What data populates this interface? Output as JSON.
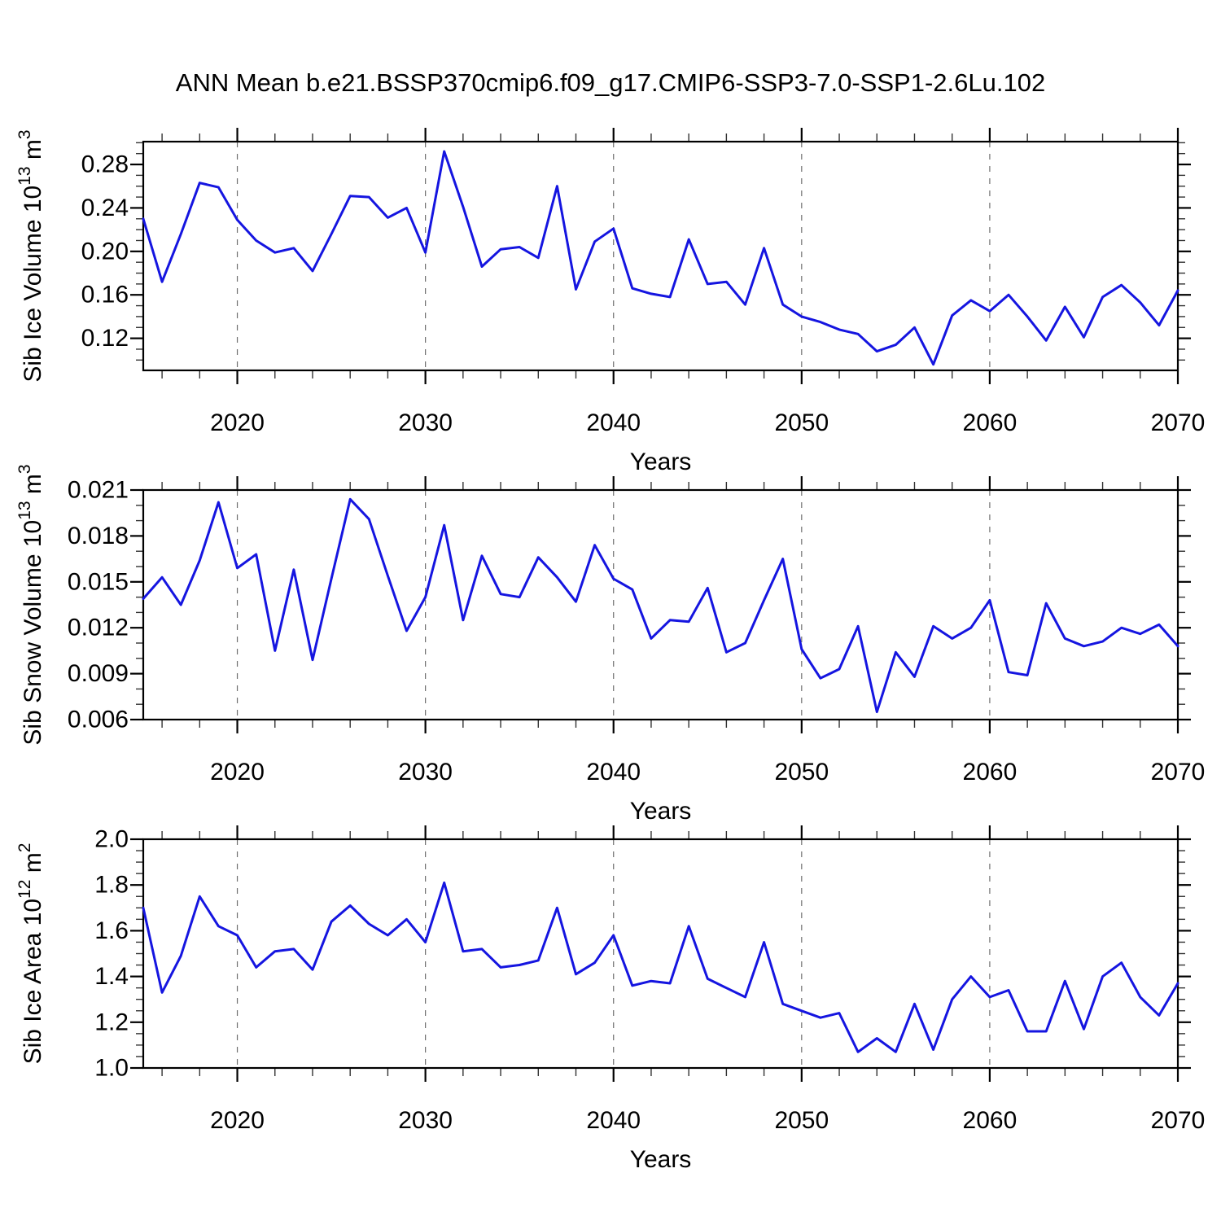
{
  "title": "ANN Mean b.e21.BSSP370cmip6.f09_g17.CMIP6-SSP3-7.0-SSP1-2.6Lu.102",
  "figure": {
    "background": "#ffffff",
    "line_color": "#1515e0",
    "axis_color": "#000000",
    "grid_color": "#6e6e6e"
  },
  "chart_data": [
    {
      "type": "line",
      "panel": "sib-ice-volume",
      "ylabel_plain": "Sib Ice Volume 10^13 m^3",
      "ylabel_parts": [
        {
          "t": "Sib Ice Volume 10"
        },
        {
          "t": "13",
          "sup": true
        },
        {
          "t": " m"
        },
        {
          "t": "3",
          "sup": true
        }
      ],
      "xlabel": "Years",
      "x_years": {
        "start": 2015,
        "end": 2070,
        "step": 1
      },
      "values": [
        0.23,
        0.172,
        0.216,
        0.263,
        0.259,
        0.229,
        0.21,
        0.199,
        0.203,
        0.182,
        0.216,
        0.251,
        0.25,
        0.231,
        0.24,
        0.199,
        0.292,
        0.241,
        0.186,
        0.202,
        0.204,
        0.194,
        0.26,
        0.165,
        0.209,
        0.221,
        0.166,
        0.161,
        0.158,
        0.211,
        0.17,
        0.172,
        0.151,
        0.203,
        0.151,
        0.14,
        0.135,
        0.128,
        0.124,
        0.108,
        0.114,
        0.13,
        0.096,
        0.141,
        0.155,
        0.145,
        0.16,
        0.14,
        0.118,
        0.149,
        0.121,
        0.158,
        0.169,
        0.153,
        0.132,
        0.164
      ],
      "xlim": [
        2015,
        2070
      ],
      "ylim": [
        0.0905,
        0.301
      ],
      "yticks": [
        0.12,
        0.16,
        0.2,
        0.24,
        0.28
      ],
      "ytick_labels": [
        "0.12",
        "0.16",
        "0.20",
        "0.24",
        "0.28"
      ],
      "minor_ytick_step": 0.01,
      "xticks": [
        2020,
        2030,
        2040,
        2050,
        2060,
        2070
      ],
      "xtick_labels": [
        "2020",
        "2030",
        "2040",
        "2050",
        "2060",
        "2070"
      ],
      "minor_xtick_step": 2,
      "grid_x": [
        2020,
        2030,
        2040,
        2050,
        2060
      ],
      "grid": "vertical-dashed",
      "legend": "none"
    },
    {
      "type": "line",
      "panel": "sib-snow-volume",
      "ylabel_plain": "Sib Snow Volume 10^13 m^3",
      "ylabel_parts": [
        {
          "t": "Sib Snow Volume 10"
        },
        {
          "t": "13",
          "sup": true
        },
        {
          "t": " m"
        },
        {
          "t": "3",
          "sup": true
        }
      ],
      "xlabel": "Years",
      "x_years": {
        "start": 2015,
        "end": 2070,
        "step": 1
      },
      "values": [
        0.0139,
        0.0153,
        0.0135,
        0.0164,
        0.0202,
        0.0159,
        0.0168,
        0.0105,
        0.0158,
        0.0099,
        0.0152,
        0.0204,
        0.0191,
        0.0154,
        0.0118,
        0.014,
        0.0187,
        0.0125,
        0.0167,
        0.0142,
        0.014,
        0.0166,
        0.0153,
        0.0137,
        0.0174,
        0.0152,
        0.0145,
        0.0113,
        0.0125,
        0.0124,
        0.0146,
        0.0104,
        0.011,
        0.0138,
        0.0165,
        0.0106,
        0.0087,
        0.0093,
        0.0121,
        0.0065,
        0.0104,
        0.0088,
        0.0121,
        0.0113,
        0.012,
        0.0138,
        0.0091,
        0.0089,
        0.0136,
        0.0113,
        0.0108,
        0.0111,
        0.012,
        0.0116,
        0.0122,
        0.0108
      ],
      "xlim": [
        2015,
        2070
      ],
      "ylim": [
        0.006,
        0.021
      ],
      "yticks": [
        0.006,
        0.009,
        0.012,
        0.015,
        0.018,
        0.021
      ],
      "ytick_labels": [
        "0.006",
        "0.009",
        "0.012",
        "0.015",
        "0.018",
        "0.021"
      ],
      "minor_ytick_step": 0.001,
      "xticks": [
        2020,
        2030,
        2040,
        2050,
        2060,
        2070
      ],
      "xtick_labels": [
        "2020",
        "2030",
        "2040",
        "2050",
        "2060",
        "2070"
      ],
      "minor_xtick_step": 2,
      "grid_x": [
        2020,
        2030,
        2040,
        2050,
        2060
      ],
      "grid": "vertical-dashed",
      "legend": "none"
    },
    {
      "type": "line",
      "panel": "sib-ice-area",
      "ylabel_plain": "Sib Ice Area 10^12 m^2",
      "ylabel_parts": [
        {
          "t": "Sib Ice Area 10"
        },
        {
          "t": "12",
          "sup": true
        },
        {
          "t": " m"
        },
        {
          "t": "2",
          "sup": true
        }
      ],
      "xlabel": "Years",
      "x_years": {
        "start": 2015,
        "end": 2070,
        "step": 1
      },
      "values": [
        1.7,
        1.33,
        1.49,
        1.75,
        1.62,
        1.58,
        1.44,
        1.51,
        1.52,
        1.43,
        1.64,
        1.71,
        1.63,
        1.58,
        1.65,
        1.55,
        1.81,
        1.51,
        1.52,
        1.44,
        1.45,
        1.47,
        1.7,
        1.41,
        1.46,
        1.58,
        1.36,
        1.38,
        1.37,
        1.62,
        1.39,
        1.35,
        1.31,
        1.55,
        1.28,
        1.25,
        1.22,
        1.24,
        1.07,
        1.13,
        1.07,
        1.28,
        1.08,
        1.3,
        1.4,
        1.31,
        1.34,
        1.16,
        1.16,
        1.38,
        1.17,
        1.4,
        1.46,
        1.31,
        1.23,
        1.37
      ],
      "xlim": [
        2015,
        2070
      ],
      "ylim": [
        1.0,
        2.0
      ],
      "yticks": [
        1.0,
        1.2,
        1.4,
        1.6,
        1.8,
        2.0
      ],
      "ytick_labels": [
        "1.0",
        "1.2",
        "1.4",
        "1.6",
        "1.8",
        "2.0"
      ],
      "minor_ytick_step": 0.05,
      "xticks": [
        2020,
        2030,
        2040,
        2050,
        2060,
        2070
      ],
      "xtick_labels": [
        "2020",
        "2030",
        "2040",
        "2050",
        "2060",
        "2070"
      ],
      "minor_xtick_step": 2,
      "grid_x": [
        2020,
        2030,
        2040,
        2050,
        2060
      ],
      "grid": "vertical-dashed",
      "legend": "none"
    }
  ]
}
